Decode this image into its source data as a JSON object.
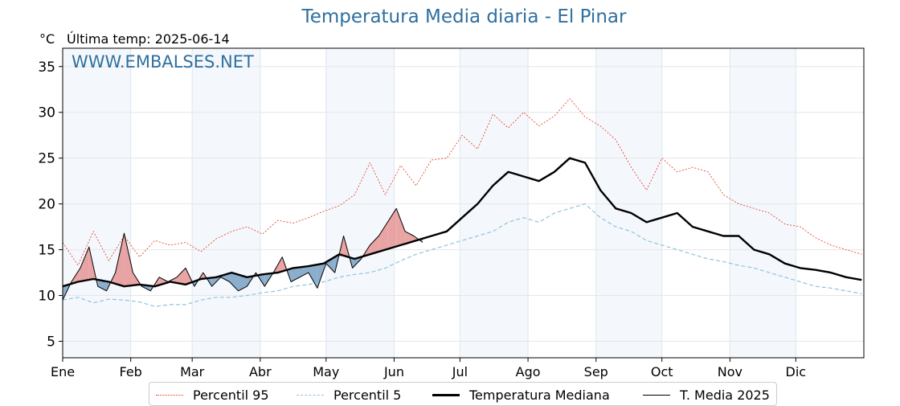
{
  "header": {
    "title": "Temperatura Media diaria - El Pinar",
    "unit": "°C",
    "last_temp": "Última temp: 2025-06-14",
    "watermark": "WWW.EMBALSES.NET"
  },
  "legend": {
    "items": [
      {
        "label": "Percentil 95",
        "color": "#e8321e",
        "style": "dotted"
      },
      {
        "label": "Percentil 5",
        "color": "#8fc3db",
        "style": "dashed"
      },
      {
        "label": "Temperatura Mediana",
        "color": "#000000",
        "style": "thick"
      },
      {
        "label": "T. Media 2025",
        "color": "#000000",
        "style": "thin"
      }
    ]
  },
  "chart_data": {
    "type": "line",
    "title": "Temperatura Media diaria - El Pinar",
    "ylabel": "°C",
    "ylim": [
      3.2,
      37
    ],
    "xlim": [
      1,
      366
    ],
    "yticks": [
      5,
      10,
      15,
      20,
      25,
      30,
      35
    ],
    "month_ticks": [
      {
        "label": "Ene",
        "day": 1
      },
      {
        "label": "Feb",
        "day": 32
      },
      {
        "label": "Mar",
        "day": 60
      },
      {
        "label": "Abr",
        "day": 91
      },
      {
        "label": "May",
        "day": 121
      },
      {
        "label": "Jun",
        "day": 152
      },
      {
        "label": "Jul",
        "day": 182
      },
      {
        "label": "Ago",
        "day": 213
      },
      {
        "label": "Sep",
        "day": 244
      },
      {
        "label": "Oct",
        "day": 274
      },
      {
        "label": "Nov",
        "day": 305
      },
      {
        "label": "Dic",
        "day": 335
      }
    ],
    "shaded_months": [
      "Ene",
      "Mar",
      "May",
      "Jul",
      "Sep",
      "Nov"
    ],
    "grid": true,
    "legend_position": "bottom",
    "fill_colors": {
      "above_median": "#e79a9a",
      "below_median": "#7ea5c6"
    },
    "series": [
      {
        "name": "Percentil 95",
        "color": "#e8321e",
        "style": "dotted",
        "x": [
          1,
          8,
          15,
          22,
          29,
          36,
          43,
          50,
          57,
          64,
          71,
          78,
          85,
          92,
          99,
          106,
          113,
          120,
          127,
          134,
          141,
          148,
          155,
          162,
          169,
          176,
          183,
          190,
          197,
          204,
          211,
          218,
          225,
          232,
          239,
          246,
          253,
          260,
          267,
          274,
          281,
          288,
          295,
          302,
          309,
          316,
          323,
          330,
          337,
          344,
          351,
          358,
          365
        ],
        "values": [
          15.8,
          13.3,
          17.0,
          13.8,
          16.5,
          14.2,
          16.0,
          15.5,
          15.8,
          14.8,
          16.2,
          17.0,
          17.5,
          16.7,
          18.2,
          17.9,
          18.5,
          19.2,
          19.8,
          21.0,
          24.5,
          21.0,
          24.2,
          22.0,
          24.8,
          25.0,
          27.5,
          26.0,
          29.8,
          28.3,
          30.0,
          28.5,
          29.6,
          31.5,
          29.5,
          28.5,
          27.0,
          24.0,
          21.5,
          25.0,
          23.5,
          24.0,
          23.5,
          21.0,
          20.0,
          19.5,
          19.0,
          17.8,
          17.5,
          16.3,
          15.5,
          15.0,
          14.5
        ]
      },
      {
        "name": "Percentil 5",
        "color": "#8fc3db",
        "style": "dashed",
        "x": [
          1,
          8,
          15,
          22,
          29,
          36,
          43,
          50,
          57,
          64,
          71,
          78,
          85,
          92,
          99,
          106,
          113,
          120,
          127,
          134,
          141,
          148,
          155,
          162,
          169,
          176,
          183,
          190,
          197,
          204,
          211,
          218,
          225,
          232,
          239,
          246,
          253,
          260,
          267,
          274,
          281,
          288,
          295,
          302,
          309,
          316,
          323,
          330,
          337,
          344,
          351,
          358,
          365
        ],
        "values": [
          9.5,
          9.8,
          9.2,
          9.6,
          9.5,
          9.3,
          8.8,
          9.0,
          9.0,
          9.5,
          9.8,
          9.8,
          10.0,
          10.3,
          10.5,
          11.0,
          11.2,
          11.5,
          12.0,
          12.3,
          12.5,
          13.0,
          13.8,
          14.5,
          15.0,
          15.5,
          16.0,
          16.5,
          17.0,
          18.0,
          18.5,
          18.0,
          19.0,
          19.5,
          20.0,
          18.5,
          17.5,
          17.0,
          16.0,
          15.5,
          15.0,
          14.5,
          14.0,
          13.7,
          13.3,
          13.0,
          12.5,
          12.0,
          11.5,
          11.0,
          10.8,
          10.5,
          10.2
        ]
      },
      {
        "name": "Temperatura Mediana",
        "color": "#000000",
        "style": "thick",
        "x": [
          1,
          8,
          15,
          22,
          29,
          36,
          43,
          50,
          57,
          64,
          71,
          78,
          85,
          92,
          99,
          106,
          113,
          120,
          127,
          134,
          141,
          148,
          155,
          162,
          169,
          176,
          183,
          190,
          197,
          204,
          211,
          218,
          225,
          232,
          239,
          246,
          253,
          260,
          267,
          274,
          281,
          288,
          295,
          302,
          309,
          316,
          323,
          330,
          337,
          344,
          351,
          358,
          365
        ],
        "values": [
          11.0,
          11.5,
          11.8,
          11.5,
          11.0,
          11.2,
          11.0,
          11.5,
          11.2,
          11.8,
          12.0,
          12.5,
          12.0,
          12.3,
          12.5,
          13.0,
          13.2,
          13.5,
          14.5,
          14.0,
          14.5,
          15.0,
          15.5,
          16.0,
          16.5,
          17.0,
          18.5,
          20.0,
          22.0,
          23.5,
          23.0,
          22.5,
          23.5,
          25.0,
          24.5,
          21.5,
          19.5,
          19.0,
          18.0,
          18.5,
          19.0,
          17.5,
          17.0,
          16.5,
          16.5,
          15.0,
          14.5,
          13.5,
          13.0,
          12.8,
          12.5,
          12.0,
          11.7
        ]
      },
      {
        "name": "T. Media 2025",
        "color": "#000000",
        "style": "thin",
        "x": [
          1,
          5,
          9,
          13,
          17,
          21,
          25,
          29,
          33,
          37,
          41,
          45,
          49,
          53,
          57,
          61,
          65,
          69,
          73,
          77,
          81,
          85,
          89,
          93,
          97,
          101,
          105,
          109,
          113,
          117,
          121,
          125,
          129,
          133,
          137,
          141,
          145,
          149,
          153,
          157,
          161,
          165
        ],
        "values": [
          9.5,
          11.5,
          13.0,
          15.3,
          11.0,
          10.5,
          12.5,
          16.8,
          12.5,
          11.0,
          10.5,
          12.0,
          11.5,
          12.0,
          13.0,
          11.0,
          12.5,
          11.0,
          12.0,
          11.5,
          10.5,
          11.0,
          12.5,
          11.0,
          12.5,
          14.2,
          11.5,
          12.0,
          12.5,
          10.8,
          13.5,
          12.5,
          16.5,
          13.0,
          14.0,
          15.5,
          16.5,
          18.0,
          19.5,
          17.0,
          16.5,
          15.8
        ]
      }
    ]
  }
}
